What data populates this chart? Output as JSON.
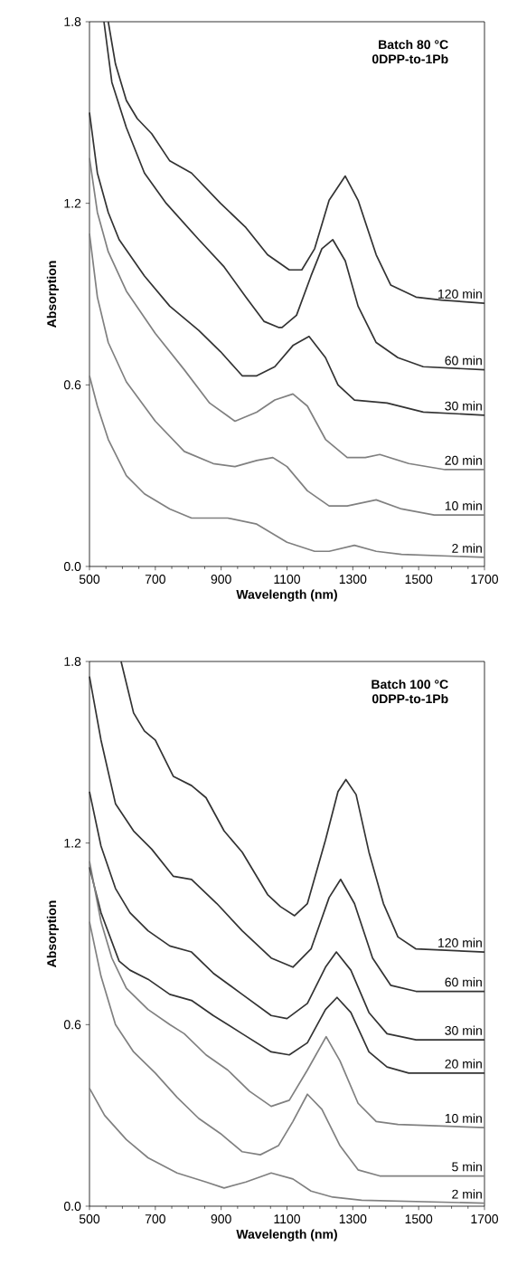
{
  "chart_data": [
    {
      "type": "line",
      "title": "Batch 80 °C",
      "subtitle": "0DPP-to-1Pb",
      "xlabel": "Wavelength (nm)",
      "ylabel": "Absorption",
      "xlim": [
        500,
        1700
      ],
      "ylim": [
        0,
        1.8
      ],
      "xticks": [
        500,
        700,
        900,
        1100,
        1300,
        1500,
        1700
      ],
      "yticks": [
        {
          "value": 0,
          "label": "0.0"
        },
        {
          "value": 0.6,
          "label": "0.6"
        },
        {
          "value": 1.2,
          "label": "1.2"
        },
        {
          "value": 1.8,
          "label": "1.8"
        }
      ],
      "series": [
        {
          "name": "120 min",
          "color": "#333333",
          "x": [
            557,
            579,
            612,
            645,
            689,
            744,
            810,
            898,
            975,
            1041,
            1107,
            1145,
            1184,
            1228,
            1277,
            1316,
            1371,
            1415,
            1492,
            1569,
            1700
          ],
          "values": [
            1.8,
            1.66,
            1.54,
            1.48,
            1.43,
            1.34,
            1.3,
            1.2,
            1.12,
            1.03,
            0.98,
            0.98,
            1.05,
            1.21,
            1.29,
            1.21,
            1.03,
            0.93,
            0.89,
            0.88,
            0.87
          ]
        },
        {
          "name": "60 min",
          "color": "#333333",
          "x": [
            544,
            568,
            612,
            667,
            733,
            832,
            909,
            975,
            1030,
            1074,
            1085,
            1129,
            1173,
            1206,
            1239,
            1277,
            1316,
            1371,
            1437,
            1514,
            1700
          ],
          "values": [
            1.8,
            1.6,
            1.45,
            1.3,
            1.2,
            1.08,
            0.99,
            0.89,
            0.81,
            0.79,
            0.79,
            0.83,
            0.96,
            1.05,
            1.08,
            1.01,
            0.86,
            0.74,
            0.69,
            0.66,
            0.65
          ]
        },
        {
          "name": "30 min",
          "color": "#333333",
          "x": [
            500,
            524,
            557,
            590,
            667,
            744,
            832,
            898,
            964,
            1008,
            1063,
            1118,
            1167,
            1217,
            1255,
            1305,
            1404,
            1514,
            1700
          ],
          "values": [
            1.5,
            1.3,
            1.17,
            1.08,
            0.96,
            0.86,
            0.78,
            0.71,
            0.63,
            0.63,
            0.66,
            0.73,
            0.76,
            0.69,
            0.6,
            0.55,
            0.54,
            0.51,
            0.5
          ]
        },
        {
          "name": "20 min",
          "color": "#808080",
          "x": [
            500,
            524,
            557,
            612,
            700,
            788,
            865,
            942,
            1008,
            1063,
            1118,
            1162,
            1217,
            1283,
            1338,
            1382,
            1470,
            1580,
            1700
          ],
          "values": [
            1.35,
            1.17,
            1.04,
            0.91,
            0.77,
            0.65,
            0.54,
            0.48,
            0.51,
            0.55,
            0.57,
            0.53,
            0.42,
            0.36,
            0.36,
            0.37,
            0.34,
            0.32,
            0.32
          ]
        },
        {
          "name": "10 min",
          "color": "#808080",
          "x": [
            500,
            524,
            557,
            612,
            700,
            788,
            876,
            942,
            1008,
            1057,
            1100,
            1162,
            1228,
            1283,
            1371,
            1448,
            1547,
            1700
          ],
          "values": [
            1.1,
            0.89,
            0.74,
            0.61,
            0.48,
            0.38,
            0.34,
            0.33,
            0.35,
            0.36,
            0.33,
            0.25,
            0.2,
            0.2,
            0.22,
            0.19,
            0.17,
            0.17
          ]
        },
        {
          "name": "2 min",
          "color": "#808080",
          "x": [
            500,
            524,
            557,
            612,
            667,
            744,
            810,
            920,
            1008,
            1100,
            1184,
            1228,
            1305,
            1371,
            1448,
            1700
          ],
          "values": [
            0.63,
            0.53,
            0.42,
            0.3,
            0.24,
            0.19,
            0.16,
            0.16,
            0.14,
            0.08,
            0.05,
            0.05,
            0.07,
            0.05,
            0.04,
            0.03
          ]
        }
      ]
    },
    {
      "type": "line",
      "title": "Batch 100 °C",
      "subtitle": "0DPP-to-1Pb",
      "xlabel": "Wavelength (nm)",
      "ylabel": "Absorption",
      "xlim": [
        500,
        1700
      ],
      "ylim": [
        0,
        1.8
      ],
      "xticks": [
        500,
        700,
        900,
        1100,
        1300,
        1500,
        1700
      ],
      "yticks": [
        {
          "value": 0,
          "label": "0.0"
        },
        {
          "value": 0.6,
          "label": "0.6"
        },
        {
          "value": 1.2,
          "label": "1.2"
        },
        {
          "value": 1.8,
          "label": "1.8"
        }
      ],
      "series": [
        {
          "name": "120 min",
          "color": "#333333",
          "x": [
            596,
            634,
            667,
            700,
            755,
            810,
            854,
            909,
            964,
            1041,
            1080,
            1123,
            1162,
            1217,
            1255,
            1279,
            1310,
            1349,
            1393,
            1437,
            1492,
            1700
          ],
          "values": [
            1.8,
            1.63,
            1.57,
            1.54,
            1.42,
            1.39,
            1.35,
            1.24,
            1.17,
            1.03,
            0.99,
            0.96,
            1.0,
            1.21,
            1.37,
            1.41,
            1.36,
            1.17,
            1.0,
            0.89,
            0.85,
            0.84
          ]
        },
        {
          "name": "60 min",
          "color": "#333333",
          "x": [
            500,
            535,
            579,
            634,
            689,
            755,
            810,
            887,
            964,
            1052,
            1118,
            1173,
            1228,
            1263,
            1305,
            1360,
            1415,
            1492,
            1700
          ],
          "values": [
            1.75,
            1.54,
            1.33,
            1.24,
            1.18,
            1.09,
            1.08,
            1.0,
            0.91,
            0.82,
            0.79,
            0.85,
            1.02,
            1.08,
            1.0,
            0.82,
            0.73,
            0.71,
            0.71
          ]
        },
        {
          "name": "30 min",
          "color": "#333333",
          "x": [
            500,
            535,
            579,
            623,
            678,
            744,
            810,
            876,
            964,
            1052,
            1100,
            1162,
            1217,
            1250,
            1294,
            1349,
            1404,
            1492,
            1700
          ],
          "values": [
            1.37,
            1.19,
            1.05,
            0.97,
            0.91,
            0.86,
            0.84,
            0.77,
            0.7,
            0.63,
            0.62,
            0.67,
            0.79,
            0.84,
            0.78,
            0.64,
            0.57,
            0.55,
            0.55
          ]
        },
        {
          "name": "20 min",
          "color": "#333333",
          "x": [
            500,
            535,
            590,
            623,
            678,
            744,
            810,
            876,
            964,
            1052,
            1107,
            1162,
            1217,
            1252,
            1294,
            1349,
            1404,
            1470,
            1700
          ],
          "values": [
            1.12,
            0.97,
            0.81,
            0.78,
            0.75,
            0.7,
            0.68,
            0.63,
            0.57,
            0.51,
            0.5,
            0.54,
            0.65,
            0.69,
            0.64,
            0.51,
            0.46,
            0.44,
            0.44
          ]
        },
        {
          "name": "10 min",
          "color": "#808080",
          "x": [
            500,
            535,
            568,
            612,
            678,
            744,
            788,
            854,
            920,
            986,
            1052,
            1107,
            1162,
            1219,
            1261,
            1316,
            1371,
            1437,
            1700
          ],
          "values": [
            1.14,
            0.94,
            0.82,
            0.72,
            0.65,
            0.6,
            0.57,
            0.5,
            0.45,
            0.38,
            0.33,
            0.35,
            0.45,
            0.56,
            0.48,
            0.34,
            0.28,
            0.27,
            0.26
          ]
        },
        {
          "name": "5 min",
          "color": "#808080",
          "x": [
            500,
            535,
            579,
            634,
            700,
            766,
            832,
            898,
            964,
            1019,
            1074,
            1118,
            1162,
            1206,
            1261,
            1316,
            1382,
            1700
          ],
          "values": [
            0.94,
            0.76,
            0.6,
            0.51,
            0.44,
            0.36,
            0.29,
            0.24,
            0.18,
            0.17,
            0.2,
            0.28,
            0.37,
            0.32,
            0.2,
            0.12,
            0.1,
            0.1
          ]
        },
        {
          "name": "2 min",
          "color": "#808080",
          "x": [
            500,
            546,
            612,
            678,
            766,
            854,
            909,
            975,
            1052,
            1118,
            1173,
            1239,
            1327,
            1700
          ],
          "values": [
            0.39,
            0.3,
            0.22,
            0.16,
            0.11,
            0.08,
            0.06,
            0.08,
            0.11,
            0.09,
            0.05,
            0.03,
            0.02,
            0.01
          ]
        }
      ]
    }
  ]
}
